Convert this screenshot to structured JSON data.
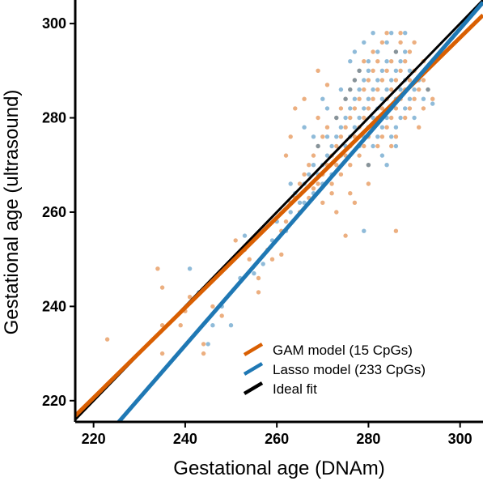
{
  "chart_data": {
    "type": "scatter",
    "xlabel": "Gestational age (DNAm)",
    "ylabel": "Gestational age (ultrasound)",
    "xlim": [
      216,
      305
    ],
    "ylim": [
      215.5,
      305
    ],
    "x_ticks": [
      220,
      240,
      260,
      280,
      300
    ],
    "y_ticks": [
      220,
      240,
      260,
      280,
      300
    ],
    "grid": false,
    "legend_position": "bottom-right",
    "series": [
      {
        "name": "GAM model (15 CpGs)",
        "color": "#d95f02",
        "fit_line": {
          "x": [
            216,
            305
          ],
          "y": [
            216.8,
            301.8
          ]
        },
        "points": [
          [
            223,
            233
          ],
          [
            234,
            248
          ],
          [
            235,
            244
          ],
          [
            235,
            236
          ],
          [
            235,
            230
          ],
          [
            239,
            236
          ],
          [
            240,
            239
          ],
          [
            241,
            242
          ],
          [
            244,
            232
          ],
          [
            244,
            230
          ],
          [
            246,
            240
          ],
          [
            248,
            238
          ],
          [
            251,
            254
          ],
          [
            253,
            252
          ],
          [
            254,
            250
          ],
          [
            256,
            243
          ],
          [
            256,
            246
          ],
          [
            258,
            252
          ],
          [
            259,
            250
          ],
          [
            261,
            251
          ],
          [
            261,
            256
          ],
          [
            262,
            258
          ],
          [
            263,
            262
          ],
          [
            264,
            263
          ],
          [
            265,
            266
          ],
          [
            265,
            260
          ],
          [
            266,
            268
          ],
          [
            267,
            263
          ],
          [
            267,
            270
          ],
          [
            268,
            265
          ],
          [
            268,
            272
          ],
          [
            269,
            266
          ],
          [
            269,
            274
          ],
          [
            270,
            268
          ],
          [
            270,
            276
          ],
          [
            270,
            262
          ],
          [
            271,
            270
          ],
          [
            271,
            278
          ],
          [
            272,
            272
          ],
          [
            272,
            266
          ],
          [
            273,
            274
          ],
          [
            273,
            280
          ],
          [
            273,
            270
          ],
          [
            274,
            276
          ],
          [
            274,
            268
          ],
          [
            274,
            282
          ],
          [
            275,
            278
          ],
          [
            275,
            272
          ],
          [
            275,
            284
          ],
          [
            276,
            280
          ],
          [
            276,
            274
          ],
          [
            276,
            286
          ],
          [
            276,
            270
          ],
          [
            277,
            282
          ],
          [
            277,
            276
          ],
          [
            277,
            288
          ],
          [
            278,
            284
          ],
          [
            278,
            278
          ],
          [
            278,
            290
          ],
          [
            278,
            272
          ],
          [
            279,
            280
          ],
          [
            279,
            286
          ],
          [
            279,
            274
          ],
          [
            279,
            292
          ],
          [
            280,
            282
          ],
          [
            280,
            288
          ],
          [
            280,
            276
          ],
          [
            280,
            270
          ],
          [
            281,
            284
          ],
          [
            281,
            290
          ],
          [
            281,
            278
          ],
          [
            281,
            294
          ],
          [
            282,
            286
          ],
          [
            282,
            280
          ],
          [
            282,
            292
          ],
          [
            282,
            274
          ],
          [
            283,
            288
          ],
          [
            283,
            282
          ],
          [
            283,
            296
          ],
          [
            283,
            276
          ],
          [
            284,
            290
          ],
          [
            284,
            284
          ],
          [
            284,
            278
          ],
          [
            284,
            298
          ],
          [
            285,
            292
          ],
          [
            285,
            286
          ],
          [
            285,
            280
          ],
          [
            285,
            274
          ],
          [
            286,
            294
          ],
          [
            286,
            288
          ],
          [
            286,
            282
          ],
          [
            286,
            276
          ],
          [
            287,
            296
          ],
          [
            287,
            290
          ],
          [
            287,
            284
          ],
          [
            287,
            298
          ],
          [
            288,
            292
          ],
          [
            288,
            286
          ],
          [
            288,
            280
          ],
          [
            289,
            294
          ],
          [
            289,
            288
          ],
          [
            289,
            282
          ],
          [
            290,
            296
          ],
          [
            290,
            290
          ],
          [
            290,
            284
          ],
          [
            291,
            286
          ],
          [
            291,
            278
          ],
          [
            292,
            288
          ],
          [
            292,
            282
          ],
          [
            293,
            286
          ],
          [
            294,
            284
          ],
          [
            286,
            256
          ],
          [
            275,
            255
          ],
          [
            272,
            264
          ],
          [
            269,
            290
          ],
          [
            271,
            287
          ],
          [
            277,
            262
          ],
          [
            266,
            284
          ],
          [
            263,
            276
          ],
          [
            262,
            272
          ],
          [
            273,
            260
          ],
          [
            276,
            264
          ],
          [
            280,
            266
          ],
          [
            264,
            282
          ],
          [
            269,
            280
          ],
          [
            292,
            292
          ]
        ]
      },
      {
        "name": "Lasso model (233 CpGs)",
        "color": "#1f78b4",
        "fit_line": {
          "x": [
            225.5,
            305
          ],
          "y": [
            215.5,
            304.5
          ]
        },
        "points": [
          [
            241,
            248
          ],
          [
            243,
            243
          ],
          [
            245,
            232
          ],
          [
            246,
            236
          ],
          [
            248,
            240
          ],
          [
            250,
            236
          ],
          [
            252,
            246
          ],
          [
            253,
            255
          ],
          [
            255,
            247
          ],
          [
            257,
            249
          ],
          [
            259,
            254
          ],
          [
            260,
            258
          ],
          [
            262,
            256
          ],
          [
            263,
            260
          ],
          [
            264,
            264
          ],
          [
            265,
            262
          ],
          [
            266,
            266
          ],
          [
            266,
            262
          ],
          [
            267,
            268
          ],
          [
            268,
            264
          ],
          [
            268,
            270
          ],
          [
            269,
            268
          ],
          [
            269,
            274
          ],
          [
            270,
            270
          ],
          [
            270,
            266
          ],
          [
            271,
            272
          ],
          [
            271,
            276
          ],
          [
            272,
            274
          ],
          [
            272,
            268
          ],
          [
            273,
            276
          ],
          [
            273,
            280
          ],
          [
            274,
            278
          ],
          [
            274,
            272
          ],
          [
            275,
            280
          ],
          [
            275,
            284
          ],
          [
            275,
            274
          ],
          [
            276,
            282
          ],
          [
            276,
            276
          ],
          [
            276,
            286
          ],
          [
            277,
            284
          ],
          [
            277,
            278
          ],
          [
            277,
            288
          ],
          [
            278,
            286
          ],
          [
            278,
            280
          ],
          [
            278,
            274
          ],
          [
            278,
            290
          ],
          [
            279,
            288
          ],
          [
            279,
            282
          ],
          [
            279,
            276
          ],
          [
            280,
            290
          ],
          [
            280,
            284
          ],
          [
            280,
            278
          ],
          [
            280,
            292
          ],
          [
            281,
            286
          ],
          [
            281,
            280
          ],
          [
            281,
            274
          ],
          [
            282,
            288
          ],
          [
            282,
            282
          ],
          [
            282,
            294
          ],
          [
            282,
            276
          ],
          [
            283,
            290
          ],
          [
            283,
            284
          ],
          [
            283,
            278
          ],
          [
            284,
            292
          ],
          [
            284,
            286
          ],
          [
            284,
            280
          ],
          [
            284,
            296
          ],
          [
            285,
            288
          ],
          [
            285,
            282
          ],
          [
            285,
            276
          ],
          [
            286,
            290
          ],
          [
            286,
            284
          ],
          [
            286,
            278
          ],
          [
            286,
            294
          ],
          [
            287,
            292
          ],
          [
            287,
            286
          ],
          [
            287,
            280
          ],
          [
            288,
            288
          ],
          [
            288,
            282
          ],
          [
            288,
            294
          ],
          [
            289,
            290
          ],
          [
            289,
            284
          ],
          [
            290,
            286
          ],
          [
            290,
            280
          ],
          [
            291,
            288
          ],
          [
            292,
            284
          ],
          [
            293,
            286
          ],
          [
            294,
            283
          ],
          [
            277,
            294
          ],
          [
            279,
            296
          ],
          [
            280,
            270
          ],
          [
            283,
            272
          ],
          [
            276,
            292
          ],
          [
            271,
            282
          ],
          [
            268,
            276
          ],
          [
            274,
            286
          ],
          [
            288,
            298
          ],
          [
            285,
            298
          ],
          [
            281,
            298
          ],
          [
            286,
            274
          ],
          [
            284,
            270
          ],
          [
            279,
            256
          ],
          [
            266,
            278
          ],
          [
            263,
            266
          ],
          [
            270,
            284
          ]
        ]
      },
      {
        "name": "Ideal fit",
        "color": "#000000",
        "fit_line": {
          "x": [
            216,
            305
          ],
          "y": [
            216,
            305
          ]
        }
      }
    ]
  }
}
